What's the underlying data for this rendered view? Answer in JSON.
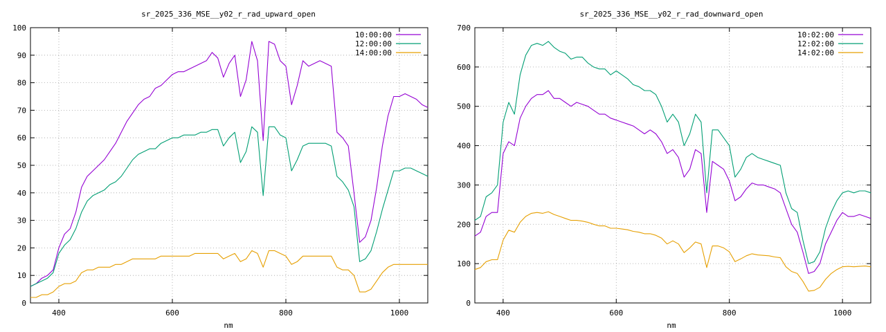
{
  "chart_data": [
    {
      "type": "line",
      "title": "sr_2025_336_MSE__y02_r_rad_upward_open",
      "xlabel": "nm",
      "ylabel": "",
      "xlim": [
        350,
        1050
      ],
      "ylim": [
        0,
        100
      ],
      "xticks": [
        400,
        600,
        800,
        1000
      ],
      "yticks": [
        0,
        10,
        20,
        30,
        40,
        50,
        60,
        70,
        80,
        90,
        100
      ],
      "grid": true,
      "legend": "top-right",
      "series": [
        {
          "name": "10:00:00",
          "color": "#9400d3",
          "x": [
            350,
            360,
            370,
            380,
            390,
            400,
            410,
            420,
            430,
            440,
            450,
            460,
            470,
            480,
            490,
            500,
            510,
            520,
            530,
            540,
            550,
            560,
            570,
            580,
            590,
            600,
            610,
            620,
            630,
            640,
            650,
            660,
            670,
            680,
            690,
            700,
            710,
            720,
            730,
            740,
            750,
            760,
            770,
            780,
            790,
            800,
            810,
            820,
            830,
            840,
            850,
            860,
            870,
            880,
            890,
            900,
            910,
            920,
            930,
            940,
            950,
            960,
            970,
            980,
            990,
            1000,
            1010,
            1020,
            1030,
            1040,
            1050
          ],
          "y": [
            6,
            7,
            9,
            10,
            12,
            20,
            25,
            27,
            33,
            42,
            46,
            48,
            50,
            52,
            55,
            58,
            62,
            66,
            69,
            72,
            74,
            75,
            78,
            79,
            81,
            83,
            84,
            84,
            85,
            86,
            87,
            88,
            91,
            89,
            82,
            87,
            90,
            75,
            81,
            95,
            88,
            59,
            95,
            94,
            88,
            86,
            72,
            79,
            88,
            86,
            87,
            88,
            87,
            86,
            62,
            60,
            57,
            40,
            22,
            24,
            30,
            42,
            57,
            68,
            75,
            75,
            76,
            75,
            74,
            72,
            71
          ]
        },
        {
          "name": "12:00:00",
          "color": "#009e73",
          "x": [
            350,
            360,
            370,
            380,
            390,
            400,
            410,
            420,
            430,
            440,
            450,
            460,
            470,
            480,
            490,
            500,
            510,
            520,
            530,
            540,
            550,
            560,
            570,
            580,
            590,
            600,
            610,
            620,
            630,
            640,
            650,
            660,
            670,
            680,
            690,
            700,
            710,
            720,
            730,
            740,
            750,
            760,
            770,
            780,
            790,
            800,
            810,
            820,
            830,
            840,
            850,
            860,
            870,
            880,
            890,
            900,
            910,
            920,
            930,
            940,
            950,
            960,
            970,
            980,
            990,
            1000,
            1010,
            1020,
            1030,
            1040,
            1050
          ],
          "y": [
            6,
            7,
            8,
            9,
            11,
            18,
            21,
            23,
            27,
            33,
            37,
            39,
            40,
            41,
            43,
            44,
            46,
            49,
            52,
            54,
            55,
            56,
            56,
            58,
            59,
            60,
            60,
            61,
            61,
            61,
            62,
            62,
            63,
            63,
            57,
            60,
            62,
            51,
            55,
            64,
            62,
            39,
            64,
            64,
            61,
            60,
            48,
            52,
            57,
            58,
            58,
            58,
            58,
            57,
            46,
            44,
            41,
            35,
            15,
            16,
            19,
            26,
            34,
            41,
            48,
            48,
            49,
            49,
            48,
            47,
            46
          ]
        },
        {
          "name": "14:00:00",
          "color": "#e69f00",
          "x": [
            350,
            360,
            370,
            380,
            390,
            400,
            410,
            420,
            430,
            440,
            450,
            460,
            470,
            480,
            490,
            500,
            510,
            520,
            530,
            540,
            550,
            560,
            570,
            580,
            590,
            600,
            610,
            620,
            630,
            640,
            650,
            660,
            670,
            680,
            690,
            700,
            710,
            720,
            730,
            740,
            750,
            760,
            770,
            780,
            790,
            800,
            810,
            820,
            830,
            840,
            850,
            860,
            870,
            880,
            890,
            900,
            910,
            920,
            930,
            940,
            950,
            960,
            970,
            980,
            990,
            1000,
            1010,
            1020,
            1030,
            1040,
            1050
          ],
          "y": [
            2,
            2,
            3,
            3,
            4,
            6,
            7,
            7,
            8,
            11,
            12,
            12,
            13,
            13,
            13,
            14,
            14,
            15,
            16,
            16,
            16,
            16,
            16,
            17,
            17,
            17,
            17,
            17,
            17,
            18,
            18,
            18,
            18,
            18,
            16,
            17,
            18,
            15,
            16,
            19,
            18,
            13,
            19,
            19,
            18,
            17,
            14,
            15,
            17,
            17,
            17,
            17,
            17,
            17,
            13,
            12,
            12,
            10,
            4,
            4,
            5,
            8,
            11,
            13,
            14,
            14,
            14,
            14,
            14,
            14,
            14
          ]
        }
      ]
    },
    {
      "type": "line",
      "title": "sr_2025_336_MSE__y02_r_rad_downward_open",
      "xlabel": "nm",
      "ylabel": "",
      "xlim": [
        350,
        1050
      ],
      "ylim": [
        0,
        700
      ],
      "xticks": [
        400,
        600,
        800,
        1000
      ],
      "yticks": [
        0,
        100,
        200,
        300,
        400,
        500,
        600,
        700
      ],
      "grid": true,
      "legend": "top-right",
      "series": [
        {
          "name": "10:02:00",
          "color": "#9400d3",
          "x": [
            350,
            360,
            370,
            380,
            390,
            400,
            410,
            420,
            430,
            440,
            450,
            460,
            470,
            480,
            490,
            500,
            510,
            520,
            530,
            540,
            550,
            560,
            570,
            580,
            590,
            600,
            610,
            620,
            630,
            640,
            650,
            660,
            670,
            680,
            690,
            700,
            710,
            720,
            730,
            740,
            750,
            760,
            770,
            780,
            790,
            800,
            810,
            820,
            830,
            840,
            850,
            860,
            870,
            880,
            890,
            900,
            910,
            920,
            930,
            940,
            950,
            960,
            970,
            980,
            990,
            1000,
            1010,
            1020,
            1030,
            1040,
            1050
          ],
          "y": [
            170,
            180,
            220,
            230,
            230,
            380,
            410,
            400,
            470,
            500,
            520,
            530,
            530,
            540,
            520,
            520,
            510,
            500,
            510,
            505,
            500,
            490,
            480,
            480,
            470,
            465,
            460,
            455,
            450,
            440,
            430,
            440,
            430,
            410,
            380,
            390,
            370,
            320,
            340,
            390,
            380,
            230,
            360,
            350,
            340,
            310,
            260,
            270,
            290,
            305,
            300,
            300,
            295,
            290,
            280,
            240,
            200,
            180,
            130,
            75,
            80,
            100,
            150,
            180,
            210,
            230,
            220,
            220,
            225,
            220,
            215
          ]
        },
        {
          "name": "12:02:00",
          "color": "#009e73",
          "x": [
            350,
            360,
            370,
            380,
            390,
            400,
            410,
            420,
            430,
            440,
            450,
            460,
            470,
            480,
            490,
            500,
            510,
            520,
            530,
            540,
            550,
            560,
            570,
            580,
            590,
            600,
            610,
            620,
            630,
            640,
            650,
            660,
            670,
            680,
            690,
            700,
            710,
            720,
            730,
            740,
            750,
            760,
            770,
            780,
            790,
            800,
            810,
            820,
            830,
            840,
            850,
            860,
            870,
            880,
            890,
            900,
            910,
            920,
            930,
            940,
            950,
            960,
            970,
            980,
            990,
            1000,
            1010,
            1020,
            1030,
            1040,
            1050
          ],
          "y": [
            210,
            220,
            270,
            280,
            300,
            460,
            510,
            480,
            580,
            630,
            655,
            660,
            655,
            665,
            650,
            640,
            635,
            620,
            625,
            625,
            610,
            600,
            595,
            595,
            580,
            590,
            580,
            570,
            555,
            550,
            540,
            540,
            530,
            500,
            460,
            480,
            460,
            400,
            430,
            480,
            460,
            280,
            440,
            440,
            420,
            400,
            320,
            340,
            370,
            380,
            370,
            365,
            360,
            355,
            350,
            280,
            240,
            230,
            160,
            100,
            105,
            130,
            190,
            230,
            260,
            280,
            285,
            280,
            285,
            285,
            280
          ]
        },
        {
          "name": "14:02:00",
          "color": "#e69f00",
          "x": [
            350,
            360,
            370,
            380,
            390,
            400,
            410,
            420,
            430,
            440,
            450,
            460,
            470,
            480,
            490,
            500,
            510,
            520,
            530,
            540,
            550,
            560,
            570,
            580,
            590,
            600,
            610,
            620,
            630,
            640,
            650,
            660,
            670,
            680,
            690,
            700,
            710,
            720,
            730,
            740,
            750,
            760,
            770,
            780,
            790,
            800,
            810,
            820,
            830,
            840,
            850,
            860,
            870,
            880,
            890,
            900,
            910,
            920,
            930,
            940,
            950,
            960,
            970,
            980,
            990,
            1000,
            1010,
            1020,
            1030,
            1040,
            1050
          ],
          "y": [
            85,
            90,
            105,
            110,
            110,
            160,
            185,
            180,
            205,
            220,
            228,
            230,
            228,
            232,
            225,
            220,
            215,
            210,
            210,
            208,
            205,
            200,
            196,
            196,
            190,
            190,
            188,
            186,
            182,
            180,
            176,
            176,
            172,
            165,
            150,
            158,
            150,
            128,
            140,
            155,
            150,
            90,
            145,
            145,
            140,
            130,
            105,
            112,
            120,
            125,
            122,
            121,
            120,
            117,
            115,
            92,
            80,
            75,
            55,
            30,
            32,
            40,
            60,
            75,
            85,
            92,
            93,
            92,
            93,
            94,
            92
          ]
        }
      ]
    }
  ]
}
